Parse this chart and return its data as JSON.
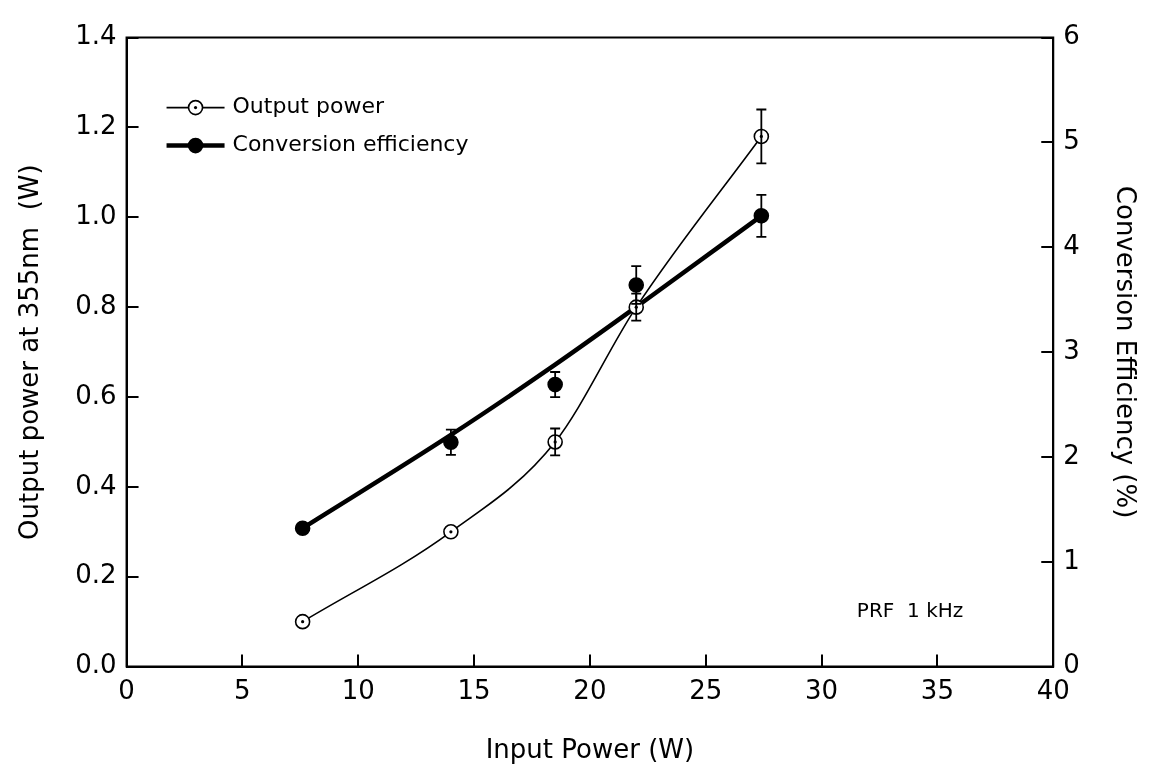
{
  "chart_data": {
    "type": "line",
    "xlabel": "Input Power (W)",
    "ylabel": "Output power at 355nm  (W)",
    "y2label": "Conversion Efficiency (%)",
    "xlim": [
      0,
      40
    ],
    "xticks": [
      0,
      5,
      10,
      15,
      20,
      25,
      30,
      35,
      40
    ],
    "ylim": [
      0,
      1.4
    ],
    "yticks": [
      {
        "value": 0,
        "label": "0.0"
      },
      {
        "value": 0.2,
        "label": "0.2"
      },
      {
        "value": 0.4,
        "label": "0.4"
      },
      {
        "value": 0.6,
        "label": "0.6"
      },
      {
        "value": 0.8,
        "label": "0.8"
      },
      {
        "value": 1,
        "label": "1.0"
      },
      {
        "value": 1.2,
        "label": "1.2"
      },
      {
        "value": 1.4,
        "label": "1.4"
      }
    ],
    "y2lim": [
      0,
      6
    ],
    "y2ticks": [
      0,
      1,
      2,
      3,
      4,
      5,
      6
    ],
    "grid": false,
    "legend": "top left",
    "annotations": [
      "PRF  1 kHz"
    ],
    "series": [
      {
        "name": "Output power",
        "type": "line",
        "color": "#000000",
        "marker": "circle",
        "x": [
          7.6,
          14,
          18.5,
          22,
          27.4
        ],
        "values": [
          0.1,
          0.3,
          0.5,
          0.8,
          1.18
        ],
        "errors": [
          null,
          null,
          0.03,
          0.03,
          0.06
        ]
      },
      {
        "name": "Conversion efficiency",
        "type": "scatter",
        "axis": "y2",
        "color": "#000000",
        "marker": "circle",
        "x": [
          7.6,
          14,
          18.5,
          22,
          27.4
        ],
        "values": [
          1.32,
          2.14,
          2.69,
          3.64,
          4.3
        ],
        "errors": [
          null,
          0.12,
          0.12,
          0.18,
          0.2
        ]
      },
      {
        "type": "line",
        "axis": "y2",
        "color": "#000000",
        "marker": "none",
        "x": [
          7.6,
          14,
          18.5,
          22,
          27.4
        ],
        "values": [
          1.32,
          2.21,
          2.88,
          3.43,
          4.3
        ]
      }
    ]
  }
}
